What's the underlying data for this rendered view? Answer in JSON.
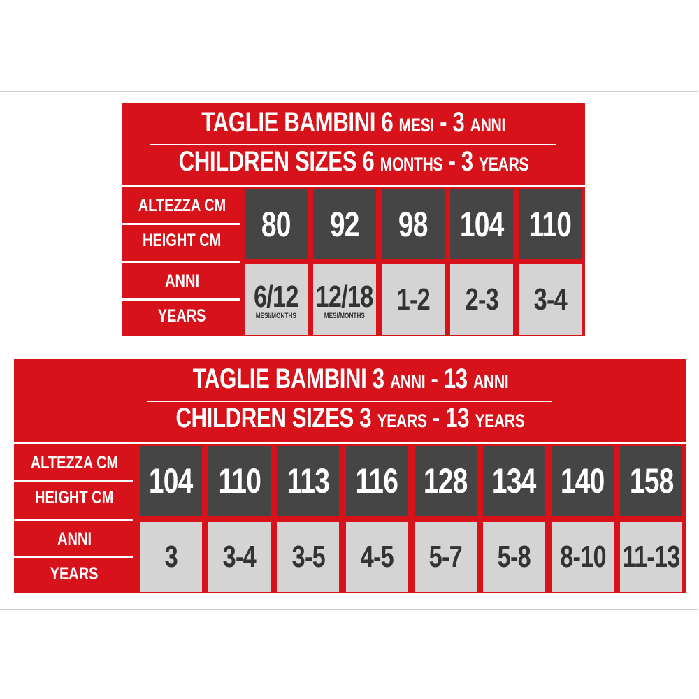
{
  "charts": [
    {
      "title_it": [
        {
          "text": "TAGLIE BAMBINI 6 ",
          "small": false
        },
        {
          "text": "MESI",
          "small": true
        },
        {
          "text": " - 3 ",
          "small": false
        },
        {
          "text": "ANNI",
          "small": true
        }
      ],
      "title_en": [
        {
          "text": "CHILDREN SIZES 6 ",
          "small": false
        },
        {
          "text": "MONTHS",
          "small": true
        },
        {
          "text": " - 3 ",
          "small": false
        },
        {
          "text": "YEARS",
          "small": true
        }
      ],
      "labels": {
        "altezza": "ALTEZZA CM",
        "height": "HEIGHT CM",
        "anni": "ANNI",
        "years": "YEARS"
      },
      "heights": [
        "80",
        "92",
        "98",
        "104",
        "110"
      ],
      "ages": [
        {
          "value": "6/12",
          "note": "MESI/MONTHS"
        },
        {
          "value": "12/18",
          "note": "MESI/MONTHS"
        },
        {
          "value": "1-2"
        },
        {
          "value": "2-3"
        },
        {
          "value": "3-4"
        }
      ]
    },
    {
      "title_it": [
        {
          "text": "TAGLIE BAMBINI 3 ",
          "small": false
        },
        {
          "text": "ANNI",
          "small": true
        },
        {
          "text": " - 13 ",
          "small": false
        },
        {
          "text": "ANNI",
          "small": true
        }
      ],
      "title_en": [
        {
          "text": "CHILDREN SIZES 3 ",
          "small": false
        },
        {
          "text": "YEARS",
          "small": true
        },
        {
          "text": " - 13 ",
          "small": false
        },
        {
          "text": "YEARS",
          "small": true
        }
      ],
      "labels": {
        "altezza": "ALTEZZA CM",
        "height": "HEIGHT CM",
        "anni": "ANNI",
        "years": "YEARS"
      },
      "heights": [
        "104",
        "110",
        "113",
        "116",
        "128",
        "134",
        "140",
        "158"
      ],
      "ages": [
        {
          "value": "3"
        },
        {
          "value": "3-4"
        },
        {
          "value": "3-5"
        },
        {
          "value": "4-5"
        },
        {
          "value": "5-7"
        },
        {
          "value": "5-8"
        },
        {
          "value": "8-10"
        },
        {
          "value": "11-13"
        }
      ]
    }
  ],
  "colors": {
    "red": "#d8121a",
    "dark": "#454545",
    "light": "#d4d4d4"
  }
}
